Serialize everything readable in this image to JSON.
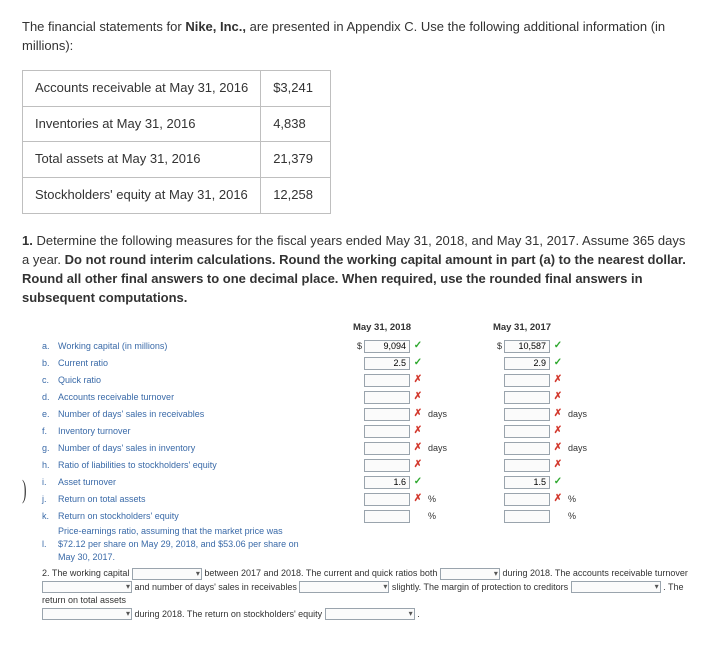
{
  "intro": {
    "pre": "The financial statements for ",
    "company": "Nike, Inc.,",
    "post": " are presented in Appendix C. Use the following additional information (in millions):"
  },
  "given_table": {
    "rows": [
      {
        "label": "Accounts receivable at May 31, 2016",
        "value": "$3,241"
      },
      {
        "label": "Inventories at May 31, 2016",
        "value": "4,838"
      },
      {
        "label": "Total assets at May 31, 2016",
        "value": "21,379"
      },
      {
        "label": "Stockholders' equity at May 31, 2016",
        "value": "12,258"
      }
    ]
  },
  "instr": {
    "lead": "1.",
    "text_a": " Determine the following measures for the fiscal years ended May 31, 2018, and May 31, 2017. Assume 365 days a year. ",
    "bold": "Do not round interim calculations. Round the working capital amount in part (a) to the nearest dollar. Round all other final answers to one decimal place. When required, use the rounded final answers in subsequent computations."
  },
  "cols": {
    "c1": "May 31, 2018",
    "c2": "May 31, 2017"
  },
  "marks": {
    "ok": "✓",
    "no": "✗"
  },
  "rows": [
    {
      "letter": "a.",
      "label": "Working capital (in millions)",
      "cur": "$",
      "v1": "9,094",
      "m1": "ok",
      "u": "",
      "v2": "10,587",
      "m2": "ok"
    },
    {
      "letter": "b.",
      "label": "Current ratio",
      "cur": "",
      "v1": "2.5",
      "m1": "ok",
      "u": "",
      "v2": "2.9",
      "m2": "ok"
    },
    {
      "letter": "c.",
      "label": "Quick ratio",
      "cur": "",
      "v1": "",
      "m1": "no",
      "u": "",
      "v2": "",
      "m2": "no"
    },
    {
      "letter": "d.",
      "label": "Accounts receivable turnover",
      "cur": "",
      "v1": "",
      "m1": "no",
      "u": "",
      "v2": "",
      "m2": "no"
    },
    {
      "letter": "e.",
      "label": "Number of days' sales in receivables",
      "cur": "",
      "v1": "",
      "m1": "no",
      "u": "days",
      "v2": "",
      "m2": "no"
    },
    {
      "letter": "f.",
      "label": "Inventory turnover",
      "cur": "",
      "v1": "",
      "m1": "no",
      "u": "",
      "v2": "",
      "m2": "no"
    },
    {
      "letter": "g.",
      "label": "Number of days' sales in inventory",
      "cur": "",
      "v1": "",
      "m1": "no",
      "u": "days",
      "v2": "",
      "m2": "no"
    },
    {
      "letter": "h.",
      "label": "Ratio of liabilities to stockholders' equity",
      "cur": "",
      "v1": "",
      "m1": "no",
      "u": "",
      "v2": "",
      "m2": "no"
    },
    {
      "letter": "i.",
      "label": "Asset turnover",
      "cur": "",
      "v1": "1.6",
      "m1": "ok",
      "u": "",
      "v2": "1.5",
      "m2": "ok"
    },
    {
      "letter": "j.",
      "label": "Return on total assets",
      "cur": "",
      "v1": "",
      "m1": "no",
      "u": "%",
      "v2": "",
      "m2": "no"
    },
    {
      "letter": "k.",
      "label": "Return on stockholders' equity",
      "cur": "",
      "v1": "",
      "m1": "",
      "u": "%",
      "v2": "",
      "m2": ""
    },
    {
      "letter": "l.",
      "label": "Price-earnings ratio, assuming that the market price was $72.12 per share on May 29, 2018, and $53.06 per share on May 30, 2017.",
      "cur": "",
      "v1": "",
      "m1": "",
      "u": "",
      "v2": "",
      "m2": ""
    }
  ],
  "narr": {
    "q2_lead": "2. The working capital",
    "seg1": " between 2017 and 2018. The current and quick ratios both ",
    "seg2": " during 2018. The accounts receivable turnover",
    "seg3": " and number of days' sales in receivables ",
    "seg4": " slightly. The margin of protection to creditors ",
    "seg5": " . The return on total assets",
    "seg6": " during 2018. The return on stockholders' equity ",
    "seg7": "."
  }
}
